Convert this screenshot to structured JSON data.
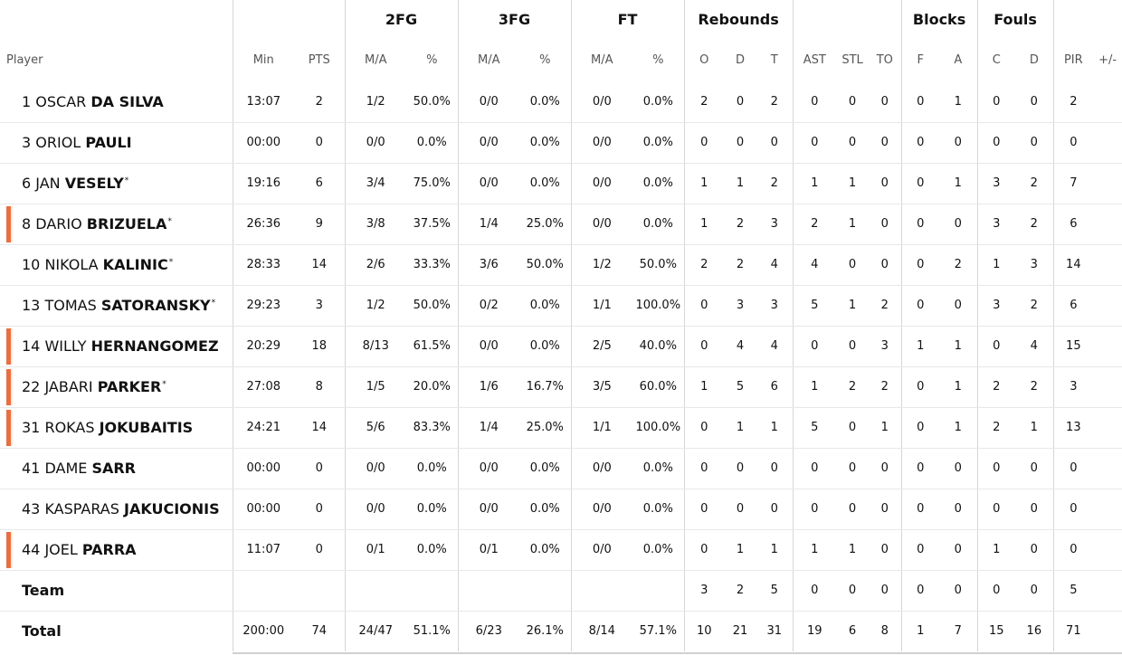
{
  "headers": {
    "groups": {
      "fg2": "2FG",
      "fg3": "3FG",
      "ft": "FT",
      "rebounds": "Rebounds",
      "blocks": "Blocks",
      "fouls": "Fouls"
    },
    "columns": {
      "player": "Player",
      "min": "Min",
      "pts": "PTS",
      "fg2_ma": "M/A",
      "fg2_pct": "%",
      "fg3_ma": "M/A",
      "fg3_pct": "%",
      "ft_ma": "M/A",
      "ft_pct": "%",
      "reb_o": "O",
      "reb_d": "D",
      "reb_t": "T",
      "ast": "AST",
      "stl": "STL",
      "to": "TO",
      "blk_f": "F",
      "blk_a": "A",
      "foul_c": "C",
      "foul_d": "D",
      "pir": "PIR",
      "plus_minus": "+/-"
    }
  },
  "players": [
    {
      "num": "1",
      "first": "OSCAR",
      "last": "DA SILVA",
      "starter": "",
      "min": "13:07",
      "pts": "2",
      "fg2_ma": "1/2",
      "fg2_pct": "50.0%",
      "fg3_ma": "0/0",
      "fg3_pct": "0.0%",
      "ft_ma": "0/0",
      "ft_pct": "0.0%",
      "reb_o": "2",
      "reb_d": "0",
      "reb_t": "2",
      "ast": "0",
      "stl": "0",
      "to": "0",
      "blk_f": "0",
      "blk_a": "1",
      "foul_c": "0",
      "foul_d": "0",
      "pir": "2",
      "plus_minus": ""
    },
    {
      "num": "3",
      "first": "ORIOL",
      "last": "PAULI",
      "starter": "",
      "min": "00:00",
      "pts": "0",
      "fg2_ma": "0/0",
      "fg2_pct": "0.0%",
      "fg3_ma": "0/0",
      "fg3_pct": "0.0%",
      "ft_ma": "0/0",
      "ft_pct": "0.0%",
      "reb_o": "0",
      "reb_d": "0",
      "reb_t": "0",
      "ast": "0",
      "stl": "0",
      "to": "0",
      "blk_f": "0",
      "blk_a": "0",
      "foul_c": "0",
      "foul_d": "0",
      "pir": "0",
      "plus_minus": ""
    },
    {
      "num": "6",
      "first": "JAN",
      "last": "VESELY",
      "starter": "*",
      "min": "19:16",
      "pts": "6",
      "fg2_ma": "3/4",
      "fg2_pct": "75.0%",
      "fg3_ma": "0/0",
      "fg3_pct": "0.0%",
      "ft_ma": "0/0",
      "ft_pct": "0.0%",
      "reb_o": "1",
      "reb_d": "1",
      "reb_t": "2",
      "ast": "1",
      "stl": "1",
      "to": "0",
      "blk_f": "0",
      "blk_a": "1",
      "foul_c": "3",
      "foul_d": "2",
      "pir": "7",
      "plus_minus": ""
    },
    {
      "num": "8",
      "first": "DARIO",
      "last": "BRIZUELA",
      "starter": "*",
      "marker": true,
      "min": "26:36",
      "pts": "9",
      "fg2_ma": "3/8",
      "fg2_pct": "37.5%",
      "fg3_ma": "1/4",
      "fg3_pct": "25.0%",
      "ft_ma": "0/0",
      "ft_pct": "0.0%",
      "reb_o": "1",
      "reb_d": "2",
      "reb_t": "3",
      "ast": "2",
      "stl": "1",
      "to": "0",
      "blk_f": "0",
      "blk_a": "0",
      "foul_c": "3",
      "foul_d": "2",
      "pir": "6",
      "plus_minus": ""
    },
    {
      "num": "10",
      "first": "NIKOLA",
      "last": "KALINIC",
      "starter": "*",
      "min": "28:33",
      "pts": "14",
      "fg2_ma": "2/6",
      "fg2_pct": "33.3%",
      "fg3_ma": "3/6",
      "fg3_pct": "50.0%",
      "ft_ma": "1/2",
      "ft_pct": "50.0%",
      "reb_o": "2",
      "reb_d": "2",
      "reb_t": "4",
      "ast": "4",
      "stl": "0",
      "to": "0",
      "blk_f": "0",
      "blk_a": "2",
      "foul_c": "1",
      "foul_d": "3",
      "pir": "14",
      "plus_minus": ""
    },
    {
      "num": "13",
      "first": "TOMAS",
      "last": "SATORANSKY",
      "starter": "*",
      "min": "29:23",
      "pts": "3",
      "fg2_ma": "1/2",
      "fg2_pct": "50.0%",
      "fg3_ma": "0/2",
      "fg3_pct": "0.0%",
      "ft_ma": "1/1",
      "ft_pct": "100.0%",
      "reb_o": "0",
      "reb_d": "3",
      "reb_t": "3",
      "ast": "5",
      "stl": "1",
      "to": "2",
      "blk_f": "0",
      "blk_a": "0",
      "foul_c": "3",
      "foul_d": "2",
      "pir": "6",
      "plus_minus": ""
    },
    {
      "num": "14",
      "first": "WILLY",
      "last": "HERNANGOMEZ",
      "starter": "",
      "marker": true,
      "min": "20:29",
      "pts": "18",
      "fg2_ma": "8/13",
      "fg2_pct": "61.5%",
      "fg3_ma": "0/0",
      "fg3_pct": "0.0%",
      "ft_ma": "2/5",
      "ft_pct": "40.0%",
      "reb_o": "0",
      "reb_d": "4",
      "reb_t": "4",
      "ast": "0",
      "stl": "0",
      "to": "3",
      "blk_f": "1",
      "blk_a": "1",
      "foul_c": "0",
      "foul_d": "4",
      "pir": "15",
      "plus_minus": ""
    },
    {
      "num": "22",
      "first": "JABARI",
      "last": "PARKER",
      "starter": "*",
      "marker": true,
      "min": "27:08",
      "pts": "8",
      "fg2_ma": "1/5",
      "fg2_pct": "20.0%",
      "fg3_ma": "1/6",
      "fg3_pct": "16.7%",
      "ft_ma": "3/5",
      "ft_pct": "60.0%",
      "reb_o": "1",
      "reb_d": "5",
      "reb_t": "6",
      "ast": "1",
      "stl": "2",
      "to": "2",
      "blk_f": "0",
      "blk_a": "1",
      "foul_c": "2",
      "foul_d": "2",
      "pir": "3",
      "plus_minus": ""
    },
    {
      "num": "31",
      "first": "ROKAS",
      "last": "JOKUBAITIS",
      "starter": "",
      "marker": true,
      "min": "24:21",
      "pts": "14",
      "fg2_ma": "5/6",
      "fg2_pct": "83.3%",
      "fg3_ma": "1/4",
      "fg3_pct": "25.0%",
      "ft_ma": "1/1",
      "ft_pct": "100.0%",
      "reb_o": "0",
      "reb_d": "1",
      "reb_t": "1",
      "ast": "5",
      "stl": "0",
      "to": "1",
      "blk_f": "0",
      "blk_a": "1",
      "foul_c": "2",
      "foul_d": "1",
      "pir": "13",
      "plus_minus": ""
    },
    {
      "num": "41",
      "first": "DAME",
      "last": "SARR",
      "starter": "",
      "min": "00:00",
      "pts": "0",
      "fg2_ma": "0/0",
      "fg2_pct": "0.0%",
      "fg3_ma": "0/0",
      "fg3_pct": "0.0%",
      "ft_ma": "0/0",
      "ft_pct": "0.0%",
      "reb_o": "0",
      "reb_d": "0",
      "reb_t": "0",
      "ast": "0",
      "stl": "0",
      "to": "0",
      "blk_f": "0",
      "blk_a": "0",
      "foul_c": "0",
      "foul_d": "0",
      "pir": "0",
      "plus_minus": ""
    },
    {
      "num": "43",
      "first": "KASPARAS",
      "last": "JAKUCIONIS",
      "starter": "",
      "min": "00:00",
      "pts": "0",
      "fg2_ma": "0/0",
      "fg2_pct": "0.0%",
      "fg3_ma": "0/0",
      "fg3_pct": "0.0%",
      "ft_ma": "0/0",
      "ft_pct": "0.0%",
      "reb_o": "0",
      "reb_d": "0",
      "reb_t": "0",
      "ast": "0",
      "stl": "0",
      "to": "0",
      "blk_f": "0",
      "blk_a": "0",
      "foul_c": "0",
      "foul_d": "0",
      "pir": "0",
      "plus_minus": ""
    },
    {
      "num": "44",
      "first": "JOEL",
      "last": "PARRA",
      "starter": "",
      "marker": true,
      "min": "11:07",
      "pts": "0",
      "fg2_ma": "0/1",
      "fg2_pct": "0.0%",
      "fg3_ma": "0/1",
      "fg3_pct": "0.0%",
      "ft_ma": "0/0",
      "ft_pct": "0.0%",
      "reb_o": "0",
      "reb_d": "1",
      "reb_t": "1",
      "ast": "1",
      "stl": "1",
      "to": "0",
      "blk_f": "0",
      "blk_a": "0",
      "foul_c": "1",
      "foul_d": "0",
      "pir": "0",
      "plus_minus": ""
    }
  ],
  "team": {
    "label": "Team",
    "min": "",
    "pts": "",
    "fg2_ma": "",
    "fg2_pct": "",
    "fg3_ma": "",
    "fg3_pct": "",
    "ft_ma": "",
    "ft_pct": "",
    "reb_o": "3",
    "reb_d": "2",
    "reb_t": "5",
    "ast": "0",
    "stl": "0",
    "to": "0",
    "blk_f": "0",
    "blk_a": "0",
    "foul_c": "0",
    "foul_d": "0",
    "pir": "5",
    "plus_minus": ""
  },
  "total": {
    "label": "Total",
    "min": "200:00",
    "pts": "74",
    "fg2_ma": "24/47",
    "fg2_pct": "51.1%",
    "fg3_ma": "6/23",
    "fg3_pct": "26.1%",
    "ft_ma": "8/14",
    "ft_pct": "57.1%",
    "reb_o": "10",
    "reb_d": "21",
    "reb_t": "31",
    "ast": "19",
    "stl": "6",
    "to": "8",
    "blk_f": "1",
    "blk_a": "7",
    "foul_c": "15",
    "foul_d": "16",
    "pir": "71",
    "plus_minus": ""
  }
}
